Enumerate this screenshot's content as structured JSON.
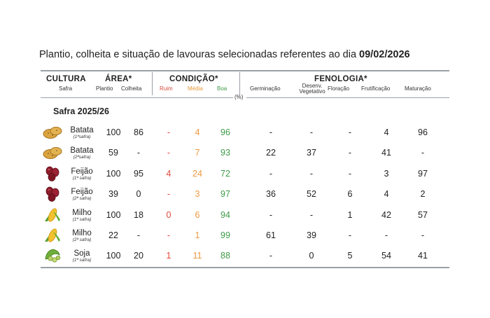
{
  "title": {
    "text": "Plantio, colheita e situação de lavouras selecionadas referentes ao dia ",
    "date": "09/02/2026"
  },
  "header": {
    "cultura": "CULTURA",
    "safra": "Safra",
    "area": "ÁREA*",
    "plantio": "Plantio",
    "colheita": "Colheita",
    "condicao": "CONDIÇÃO*",
    "ruim": "Ruim",
    "media": "Média",
    "boa": "Boa",
    "fenologia": "FENOLOGIA*",
    "germinacao": "Germinação",
    "desenv1": "Desenv.",
    "desenv2": "Vegetativo",
    "floracao": "Floração",
    "frutificacao": "Frutificação",
    "maturacao": "Maturação",
    "pct": "(%)"
  },
  "section": "Safra 2025/26",
  "colors": {
    "ruim": "#e0473a",
    "media": "#ee9940",
    "boa": "#3f9b4a",
    "rule": "#9aa0a6"
  },
  "rows": [
    {
      "icon": "potato-icon",
      "name": "Batata",
      "safra": "(1ªsafra)",
      "plantio": "100",
      "colheita": "86",
      "ruim": "-",
      "media": "4",
      "boa": "96",
      "germ": "-",
      "desenv": "-",
      "flor": "-",
      "frut": "4",
      "mat": "96"
    },
    {
      "icon": "potato-icon",
      "name": "Batata",
      "safra": "(2ªsafra)",
      "plantio": "59",
      "colheita": "-",
      "ruim": "-",
      "media": "7",
      "boa": "93",
      "germ": "22",
      "desenv": "37",
      "flor": "-",
      "frut": "41",
      "mat": "-"
    },
    {
      "icon": "bean-icon",
      "name": "Feijão",
      "safra": "(1ª safra)",
      "plantio": "100",
      "colheita": "95",
      "ruim": "4",
      "media": "24",
      "boa": "72",
      "germ": "-",
      "desenv": "-",
      "flor": "-",
      "frut": "3",
      "mat": "97"
    },
    {
      "icon": "bean-icon",
      "name": "Feijão",
      "safra": "(2ª safra)",
      "plantio": "39",
      "colheita": "0",
      "ruim": "-",
      "media": "3",
      "boa": "97",
      "germ": "36",
      "desenv": "52",
      "flor": "6",
      "frut": "4",
      "mat": "2"
    },
    {
      "icon": "corn-icon",
      "name": "Milho",
      "safra": "(1ª safra)",
      "plantio": "100",
      "colheita": "18",
      "ruim": "0",
      "media": "6",
      "boa": "94",
      "germ": "-",
      "desenv": "-",
      "flor": "1",
      "frut": "42",
      "mat": "57"
    },
    {
      "icon": "corn-icon",
      "name": "Milho",
      "safra": "(2ª safra)",
      "plantio": "22",
      "colheita": "-",
      "ruim": "-",
      "media": "1",
      "boa": "99",
      "germ": "61",
      "desenv": "39",
      "flor": "-",
      "frut": "-",
      "mat": "-"
    },
    {
      "icon": "soybean-icon",
      "name": "Soja",
      "safra": "(1ª safra)",
      "plantio": "100",
      "colheita": "20",
      "ruim": "1",
      "media": "11",
      "boa": "88",
      "germ": "-",
      "desenv": "0",
      "flor": "5",
      "frut": "54",
      "mat": "41"
    }
  ]
}
